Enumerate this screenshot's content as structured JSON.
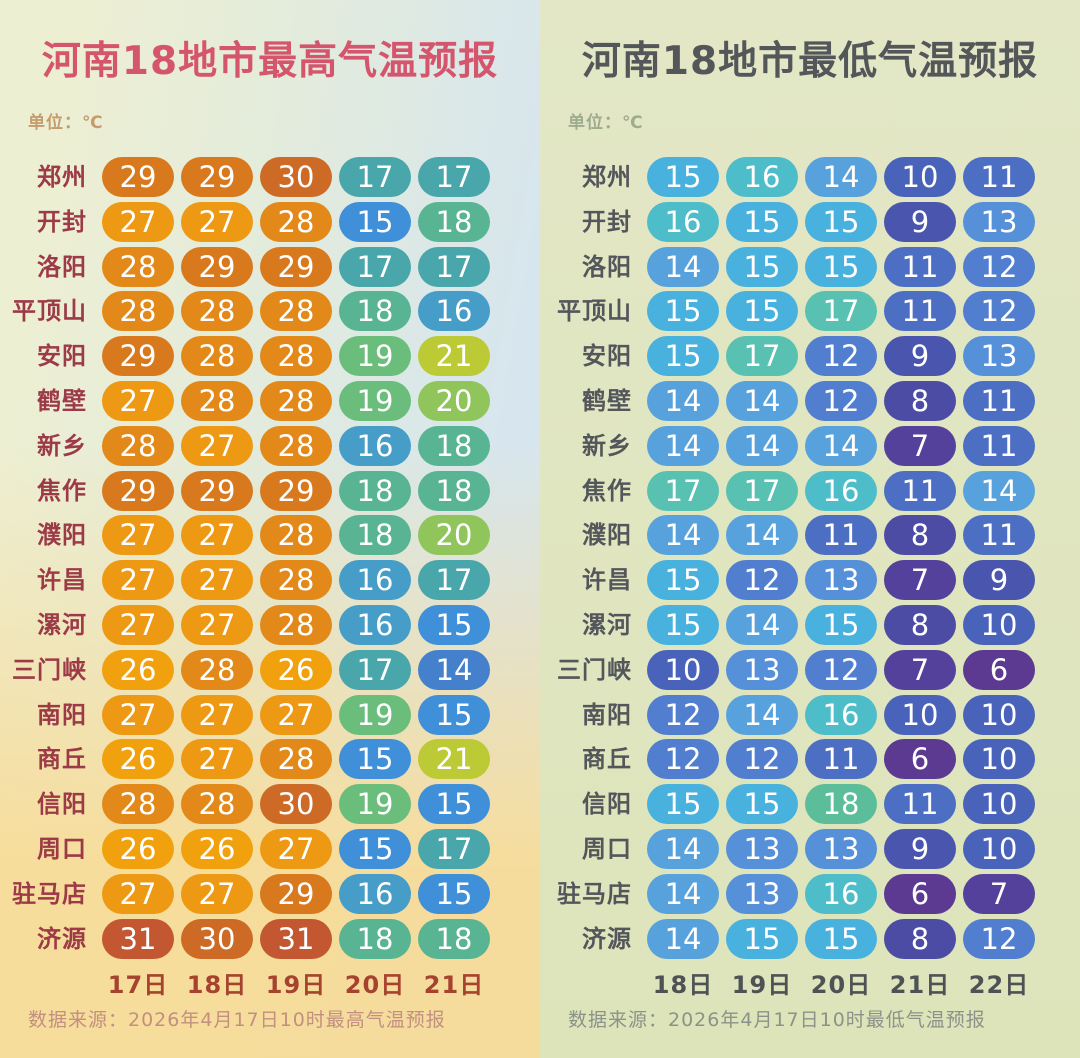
{
  "chart_data": [
    {
      "type": "heatmap",
      "title": "河南18地市最高气温预报",
      "unit_label": "单位：℃",
      "columns": [
        "17日",
        "18日",
        "19日",
        "20日",
        "21日"
      ],
      "cities": [
        "郑州",
        "开封",
        "洛阳",
        "平顶山",
        "安阳",
        "鹤壁",
        "新乡",
        "焦作",
        "濮阳",
        "许昌",
        "漯河",
        "三门峡",
        "南阳",
        "商丘",
        "信阳",
        "周口",
        "驻马店",
        "济源"
      ],
      "values": [
        [
          29,
          29,
          30,
          17,
          17
        ],
        [
          27,
          27,
          28,
          15,
          18
        ],
        [
          28,
          29,
          29,
          17,
          17
        ],
        [
          28,
          28,
          28,
          18,
          16
        ],
        [
          29,
          28,
          28,
          19,
          21
        ],
        [
          27,
          28,
          28,
          19,
          20
        ],
        [
          28,
          27,
          28,
          16,
          18
        ],
        [
          29,
          29,
          29,
          18,
          18
        ],
        [
          27,
          27,
          28,
          18,
          20
        ],
        [
          27,
          27,
          28,
          16,
          17
        ],
        [
          27,
          27,
          28,
          16,
          15
        ],
        [
          26,
          28,
          26,
          17,
          14
        ],
        [
          27,
          27,
          27,
          19,
          15
        ],
        [
          26,
          27,
          28,
          15,
          21
        ],
        [
          28,
          28,
          30,
          19,
          15
        ],
        [
          26,
          26,
          27,
          15,
          17
        ],
        [
          27,
          27,
          29,
          16,
          15
        ],
        [
          31,
          30,
          31,
          18,
          18
        ]
      ],
      "source_note": "数据来源：2026年4月17日10时最高气温预报",
      "value_range": [
        14,
        31
      ],
      "legend": "none",
      "palette": {
        "title_color": "#d5566c",
        "unit_color": "#c49b6c",
        "city_color": "#9c3a47",
        "date_color": "#a5432f",
        "source_color": "#c28f80",
        "value_text_color": "#ffffff",
        "temp_colors": {
          "31": "#c25732",
          "30": "#cd6a25",
          "29": "#d8791d",
          "28": "#e28919",
          "27": "#ee9913",
          "26": "#f1a10d",
          "21": "#bcca35",
          "20": "#90c55c",
          "19": "#6abd7b",
          "18": "#58b493",
          "17": "#49a7ab",
          "16": "#459dc8",
          "15": "#3f90d8",
          "14": "#4480cc"
        }
      }
    },
    {
      "type": "heatmap",
      "title": "河南18地市最低气温预报",
      "unit_label": "单位：℃",
      "columns": [
        "18日",
        "19日",
        "20日",
        "21日",
        "22日"
      ],
      "cities": [
        "郑州",
        "开封",
        "洛阳",
        "平顶山",
        "安阳",
        "鹤壁",
        "新乡",
        "焦作",
        "濮阳",
        "许昌",
        "漯河",
        "三门峡",
        "南阳",
        "商丘",
        "信阳",
        "周口",
        "驻马店",
        "济源"
      ],
      "values": [
        [
          15,
          16,
          14,
          10,
          11
        ],
        [
          16,
          15,
          15,
          9,
          13
        ],
        [
          14,
          15,
          15,
          11,
          12
        ],
        [
          15,
          15,
          17,
          11,
          12
        ],
        [
          15,
          17,
          12,
          9,
          13
        ],
        [
          14,
          14,
          12,
          8,
          11
        ],
        [
          14,
          14,
          14,
          7,
          11
        ],
        [
          17,
          17,
          16,
          11,
          14
        ],
        [
          14,
          14,
          11,
          8,
          11
        ],
        [
          15,
          12,
          13,
          7,
          9
        ],
        [
          15,
          14,
          15,
          8,
          10
        ],
        [
          10,
          13,
          12,
          7,
          6
        ],
        [
          12,
          14,
          16,
          10,
          10
        ],
        [
          12,
          12,
          11,
          6,
          10
        ],
        [
          15,
          15,
          18,
          11,
          10
        ],
        [
          14,
          13,
          13,
          9,
          10
        ],
        [
          14,
          13,
          16,
          6,
          7
        ],
        [
          14,
          15,
          15,
          8,
          12
        ]
      ],
      "source_note": "数据来源：2026年4月17日10时最低气温预报",
      "value_range": [
        6,
        18
      ],
      "legend": "none",
      "palette": {
        "title_color": "#54575a",
        "unit_color": "#9dab8f",
        "city_color": "#53565a",
        "date_color": "#4f5254",
        "source_color": "#8b9289",
        "value_text_color": "#ffffff",
        "temp_colors": {
          "18": "#5cbd9b",
          "17": "#58c1b2",
          "16": "#4ebdca",
          "15": "#49b1de",
          "14": "#57a2dd",
          "13": "#5590d8",
          "12": "#527ed0",
          "11": "#4c6fc4",
          "10": "#4a63ba",
          "9": "#4a56ae",
          "8": "#4c4ca5",
          "7": "#54419b",
          "6": "#5c3a92"
        }
      }
    }
  ]
}
